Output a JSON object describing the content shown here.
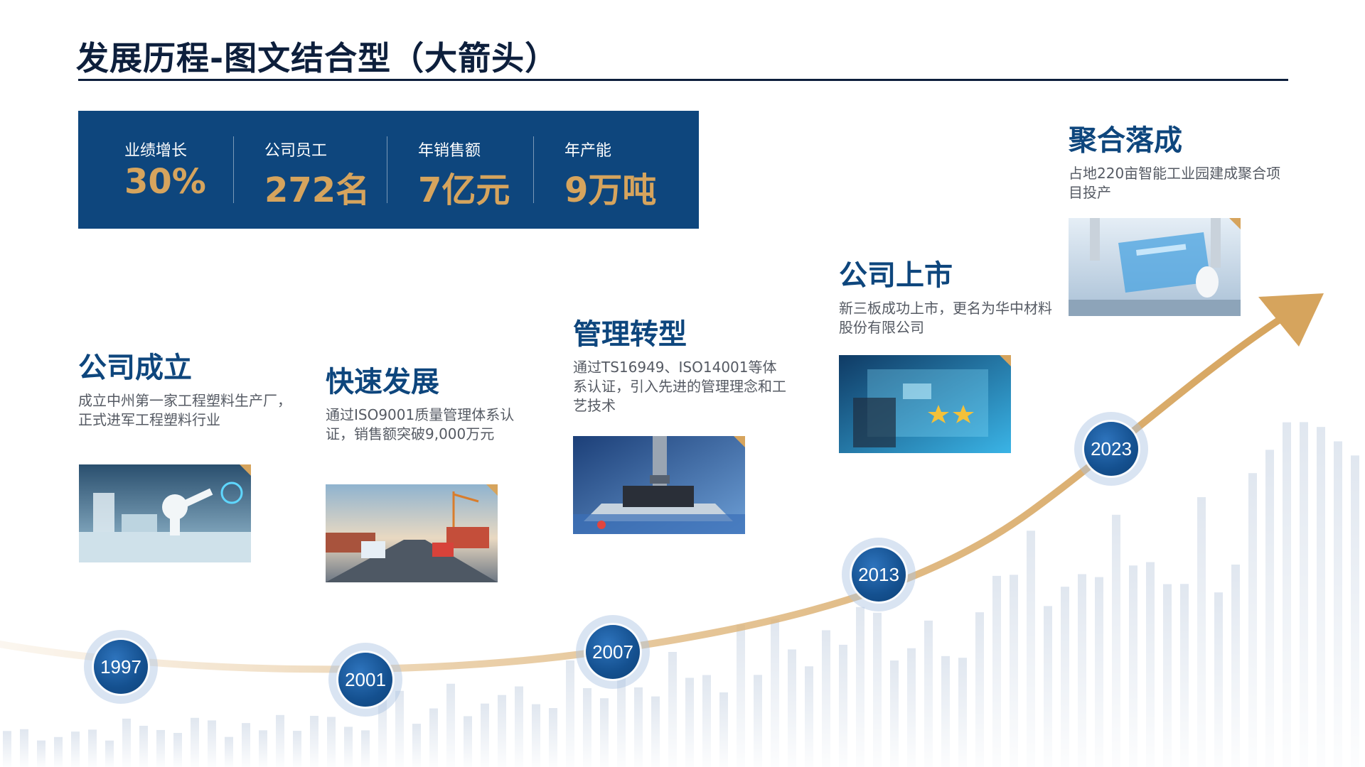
{
  "title": "发展历程-图文结合型（大箭头）",
  "stats": [
    {
      "label": "业绩增长",
      "value": "30%"
    },
    {
      "label": "公司员工",
      "value": "272名"
    },
    {
      "label": "年销售额",
      "value": "7亿元"
    },
    {
      "label": "年产能",
      "value": "9万吨"
    }
  ],
  "milestones": [
    {
      "year": "1997",
      "title": "公司成立",
      "desc": "成立中州第一家工程塑料生产厂，正式进军工程塑料行业",
      "image": "smart-factory-robot-arms"
    },
    {
      "year": "2001",
      "title": "快速发展",
      "desc": "通过ISO9001质量管理体系认证，销售额突破9,000万元",
      "image": "logistics-trucks-port"
    },
    {
      "year": "2007",
      "title": "管理转型",
      "desc": "通过TS16949、ISO14001等体系认证，引入先进的管理理念和工艺技术",
      "image": "precision-manufacturing-machine"
    },
    {
      "year": "2013",
      "title": "公司上市",
      "desc": "新三板成功上市，更名为华中材料股份有限公司",
      "image": "customer-reviews-rating-screen"
    },
    {
      "year": "2023",
      "title": "聚合落成",
      "desc": "占地220亩智能工业园建成聚合项目投产",
      "image": "robot-hands-tablet"
    }
  ],
  "colors": {
    "navy": "#0e467d",
    "title": "#0d1f3c",
    "gold": "#d6a45d",
    "node": "#14508f"
  }
}
